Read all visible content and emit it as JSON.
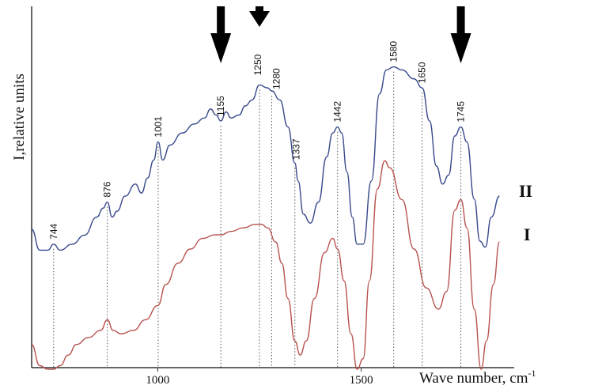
{
  "chart_data": {
    "type": "line",
    "xlabel": "Wave number, cm",
    "xlabel_sup": "-1",
    "ylabel": "I,relative units",
    "xlim": [
      690,
      1880
    ],
    "x_ticks": [
      1000,
      1500
    ],
    "peaks": [
      744,
      876,
      1001,
      1155,
      1250,
      1280,
      1337,
      1442,
      1580,
      1650,
      1745
    ],
    "arrows_at": [
      1155,
      1250,
      1745
    ],
    "colors": {
      "series_II": "#3a4a8c",
      "series_I": "#b85450",
      "guides": "#555555"
    },
    "series": [
      {
        "name": "II",
        "points": [
          [
            690,
            0.29
          ],
          [
            710,
            0.22
          ],
          [
            730,
            0.22
          ],
          [
            744,
            0.24
          ],
          [
            760,
            0.22
          ],
          [
            790,
            0.24
          ],
          [
            820,
            0.27
          ],
          [
            850,
            0.33
          ],
          [
            866,
            0.36
          ],
          [
            876,
            0.38
          ],
          [
            888,
            0.33
          ],
          [
            900,
            0.35
          ],
          [
            920,
            0.4
          ],
          [
            945,
            0.44
          ],
          [
            960,
            0.41
          ],
          [
            975,
            0.46
          ],
          [
            990,
            0.52
          ],
          [
            1001,
            0.58
          ],
          [
            1012,
            0.52
          ],
          [
            1030,
            0.57
          ],
          [
            1060,
            0.61
          ],
          [
            1090,
            0.64
          ],
          [
            1115,
            0.66
          ],
          [
            1130,
            0.69
          ],
          [
            1143,
            0.67
          ],
          [
            1155,
            0.65
          ],
          [
            1168,
            0.68
          ],
          [
            1180,
            0.66
          ],
          [
            1200,
            0.67
          ],
          [
            1215,
            0.7
          ],
          [
            1232,
            0.72
          ],
          [
            1250,
            0.77
          ],
          [
            1270,
            0.76
          ],
          [
            1280,
            0.75
          ],
          [
            1300,
            0.72
          ],
          [
            1320,
            0.63
          ],
          [
            1337,
            0.51
          ],
          [
            1345,
            0.45
          ],
          [
            1358,
            0.34
          ],
          [
            1375,
            0.31
          ],
          [
            1395,
            0.38
          ],
          [
            1415,
            0.53
          ],
          [
            1430,
            0.61
          ],
          [
            1442,
            0.63
          ],
          [
            1452,
            0.61
          ],
          [
            1465,
            0.48
          ],
          [
            1478,
            0.33
          ],
          [
            1490,
            0.24
          ],
          [
            1505,
            0.24
          ],
          [
            1525,
            0.45
          ],
          [
            1545,
            0.74
          ],
          [
            1562,
            0.82
          ],
          [
            1580,
            0.83
          ],
          [
            1600,
            0.82
          ],
          [
            1630,
            0.79
          ],
          [
            1650,
            0.76
          ],
          [
            1668,
            0.65
          ],
          [
            1685,
            0.5
          ],
          [
            1700,
            0.44
          ],
          [
            1715,
            0.47
          ],
          [
            1730,
            0.6
          ],
          [
            1745,
            0.63
          ],
          [
            1760,
            0.58
          ],
          [
            1778,
            0.39
          ],
          [
            1792,
            0.25
          ],
          [
            1805,
            0.23
          ],
          [
            1820,
            0.33
          ],
          [
            1840,
            0.4
          ]
        ]
      },
      {
        "name": "I",
        "points": [
          [
            690,
            0.07
          ],
          [
            710,
            0.01
          ],
          [
            730,
            0.0
          ],
          [
            744,
            0.0
          ],
          [
            760,
            0.01
          ],
          [
            780,
            0.04
          ],
          [
            800,
            0.07
          ],
          [
            830,
            0.09
          ],
          [
            860,
            0.11
          ],
          [
            876,
            0.14
          ],
          [
            890,
            0.11
          ],
          [
            910,
            0.1
          ],
          [
            940,
            0.11
          ],
          [
            970,
            0.14
          ],
          [
            1000,
            0.18
          ],
          [
            1020,
            0.24
          ],
          [
            1050,
            0.3
          ],
          [
            1080,
            0.34
          ],
          [
            1110,
            0.37
          ],
          [
            1140,
            0.38
          ],
          [
            1155,
            0.38
          ],
          [
            1180,
            0.39
          ],
          [
            1210,
            0.4
          ],
          [
            1240,
            0.41
          ],
          [
            1255,
            0.41
          ],
          [
            1270,
            0.4
          ],
          [
            1290,
            0.36
          ],
          [
            1305,
            0.3
          ],
          [
            1320,
            0.2
          ],
          [
            1337,
            0.08
          ],
          [
            1350,
            0.04
          ],
          [
            1365,
            0.08
          ],
          [
            1385,
            0.2
          ],
          [
            1410,
            0.33
          ],
          [
            1430,
            0.37
          ],
          [
            1442,
            0.34
          ],
          [
            1458,
            0.25
          ],
          [
            1475,
            0.1
          ],
          [
            1490,
            0.0
          ],
          [
            1505,
            0.03
          ],
          [
            1520,
            0.25
          ],
          [
            1540,
            0.51
          ],
          [
            1558,
            0.59
          ],
          [
            1570,
            0.57
          ],
          [
            1600,
            0.48
          ],
          [
            1630,
            0.34
          ],
          [
            1660,
            0.23
          ],
          [
            1690,
            0.17
          ],
          [
            1710,
            0.22
          ],
          [
            1730,
            0.45
          ],
          [
            1745,
            0.48
          ],
          [
            1760,
            0.4
          ],
          [
            1778,
            0.17
          ],
          [
            1795,
            0.0
          ],
          [
            1808,
            0.08
          ],
          [
            1825,
            0.24
          ],
          [
            1840,
            0.36
          ]
        ]
      }
    ]
  }
}
